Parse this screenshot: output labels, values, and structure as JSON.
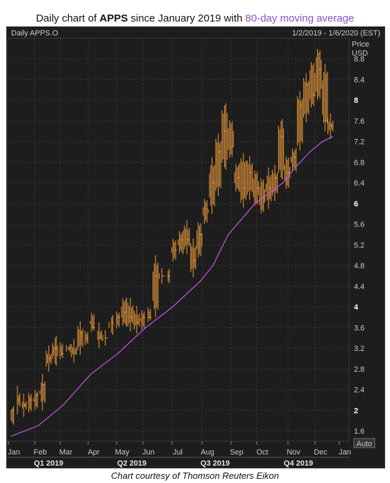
{
  "title": {
    "prefix": "Daily chart of ",
    "ticker": "APPS",
    "middle": " since January 2019 with ",
    "ma_label": "80-day moving average"
  },
  "caption": "Chart courtesy of Thomson Reuters Eikon",
  "colors": {
    "background": "#1d1d1d",
    "grid": "#3a3a3a",
    "price": "#f5a03c",
    "moving_average": "#c050e0",
    "title_highlight": "#8a4fc8"
  },
  "chart_data": {
    "type": "line",
    "panel_label": "Daily APPS.O",
    "date_range": "1/2/2019 - 1/6/2020 (EST)",
    "ylabel": "Price",
    "yunit": "USD",
    "auto_label": "Auto",
    "ylim": [
      1.4,
      9.2
    ],
    "yticks": [
      "1.6",
      "2",
      "2.4",
      "2.8",
      "3.2",
      "3.6",
      "4",
      "4.4",
      "4.8",
      "5.2",
      "5.6",
      "6",
      "6.4",
      "6.8",
      "7.2",
      "7.6",
      "8",
      "8.4",
      "8.8"
    ],
    "ybold": [
      "2",
      "4",
      "6",
      "8"
    ],
    "month_labels": [
      "Jan",
      "Feb",
      "Mar",
      "Apr",
      "May",
      "Jun",
      "Jul",
      "Aug",
      "Sep",
      "Oct",
      "Nov",
      "Dec",
      "Jan"
    ],
    "quarter_labels": [
      "Q1 2019",
      "Q2 2019",
      "Q3 2019",
      "Q4 2019"
    ],
    "grid": true,
    "series": [
      {
        "key": "price",
        "style": "ohlc_bars",
        "x": [
          "2019-01-02",
          "2019-01-09",
          "2019-01-16",
          "2019-01-23",
          "2019-01-30",
          "2019-02-06",
          "2019-02-13",
          "2019-02-20",
          "2019-02-27",
          "2019-03-06",
          "2019-03-13",
          "2019-03-20",
          "2019-03-27",
          "2019-04-03",
          "2019-04-10",
          "2019-04-17",
          "2019-04-24",
          "2019-05-01",
          "2019-05-08",
          "2019-05-15",
          "2019-05-22",
          "2019-05-29",
          "2019-06-05",
          "2019-06-12",
          "2019-06-19",
          "2019-06-26",
          "2019-07-03",
          "2019-07-10",
          "2019-07-17",
          "2019-07-24",
          "2019-07-31",
          "2019-08-07",
          "2019-08-14",
          "2019-08-21",
          "2019-08-28",
          "2019-09-04",
          "2019-09-11",
          "2019-09-18",
          "2019-09-25",
          "2019-10-02",
          "2019-10-09",
          "2019-10-16",
          "2019-10-23",
          "2019-10-30",
          "2019-11-06",
          "2019-11-13",
          "2019-11-20",
          "2019-11-27",
          "2019-12-04",
          "2019-12-11",
          "2019-12-18",
          "2019-12-24"
        ],
        "high": [
          2.1,
          2.4,
          2.3,
          2.3,
          2.4,
          2.6,
          3.2,
          3.4,
          3.3,
          3.3,
          3.3,
          3.7,
          3.5,
          3.9,
          3.6,
          3.5,
          3.8,
          3.9,
          4.2,
          4.1,
          4.0,
          3.9,
          4.0,
          4.9,
          4.7,
          4.7,
          5.3,
          5.5,
          5.6,
          5.3,
          5.6,
          6.1,
          6.8,
          7.3,
          7.9,
          7.6,
          6.8,
          6.9,
          6.9,
          6.6,
          6.5,
          6.6,
          6.7,
          7.6,
          6.9,
          7.1,
          8.1,
          8.5,
          8.7,
          9.0,
          8.6,
          7.7
        ],
        "low": [
          1.7,
          2.0,
          1.9,
          2.0,
          2.0,
          2.1,
          2.8,
          2.9,
          3.0,
          3.1,
          3.0,
          3.1,
          3.3,
          3.5,
          3.3,
          3.3,
          3.5,
          3.6,
          3.6,
          3.6,
          3.5,
          3.6,
          3.7,
          3.9,
          4.5,
          4.5,
          4.9,
          5.0,
          5.1,
          4.6,
          5.0,
          5.6,
          5.9,
          6.2,
          6.7,
          6.9,
          6.2,
          6.0,
          6.1,
          6.0,
          5.8,
          6.0,
          6.1,
          6.5,
          6.3,
          6.6,
          7.1,
          7.6,
          7.9,
          8.0,
          7.5,
          7.3
        ],
        "close": [
          2.0,
          2.2,
          2.1,
          2.2,
          2.3,
          2.5,
          3.0,
          3.2,
          3.1,
          3.2,
          3.1,
          3.5,
          3.4,
          3.6,
          3.4,
          3.4,
          3.7,
          3.8,
          3.9,
          3.8,
          3.7,
          3.8,
          3.8,
          4.6,
          4.6,
          4.6,
          5.1,
          5.3,
          5.3,
          4.9,
          5.4,
          5.9,
          6.4,
          7.0,
          7.4,
          7.1,
          6.5,
          6.3,
          6.6,
          6.3,
          6.1,
          6.3,
          6.5,
          7.3,
          6.6,
          6.9,
          7.9,
          8.3,
          8.1,
          8.6,
          7.6,
          7.5
        ]
      },
      {
        "key": "moving_average",
        "name": "80-day moving average",
        "style": "line",
        "x": [
          "2019-01-02",
          "2019-02-01",
          "2019-03-01",
          "2019-04-01",
          "2019-05-01",
          "2019-06-01",
          "2019-07-01",
          "2019-08-01",
          "2019-08-15",
          "2019-09-01",
          "2019-10-01",
          "2019-11-01",
          "2019-11-15",
          "2019-12-01",
          "2019-12-15",
          "2019-12-27"
        ],
        "values": [
          1.5,
          1.7,
          2.1,
          2.7,
          3.1,
          3.6,
          4.0,
          4.5,
          4.8,
          5.4,
          6.0,
          6.4,
          6.7,
          7.0,
          7.2,
          7.3
        ]
      }
    ]
  }
}
